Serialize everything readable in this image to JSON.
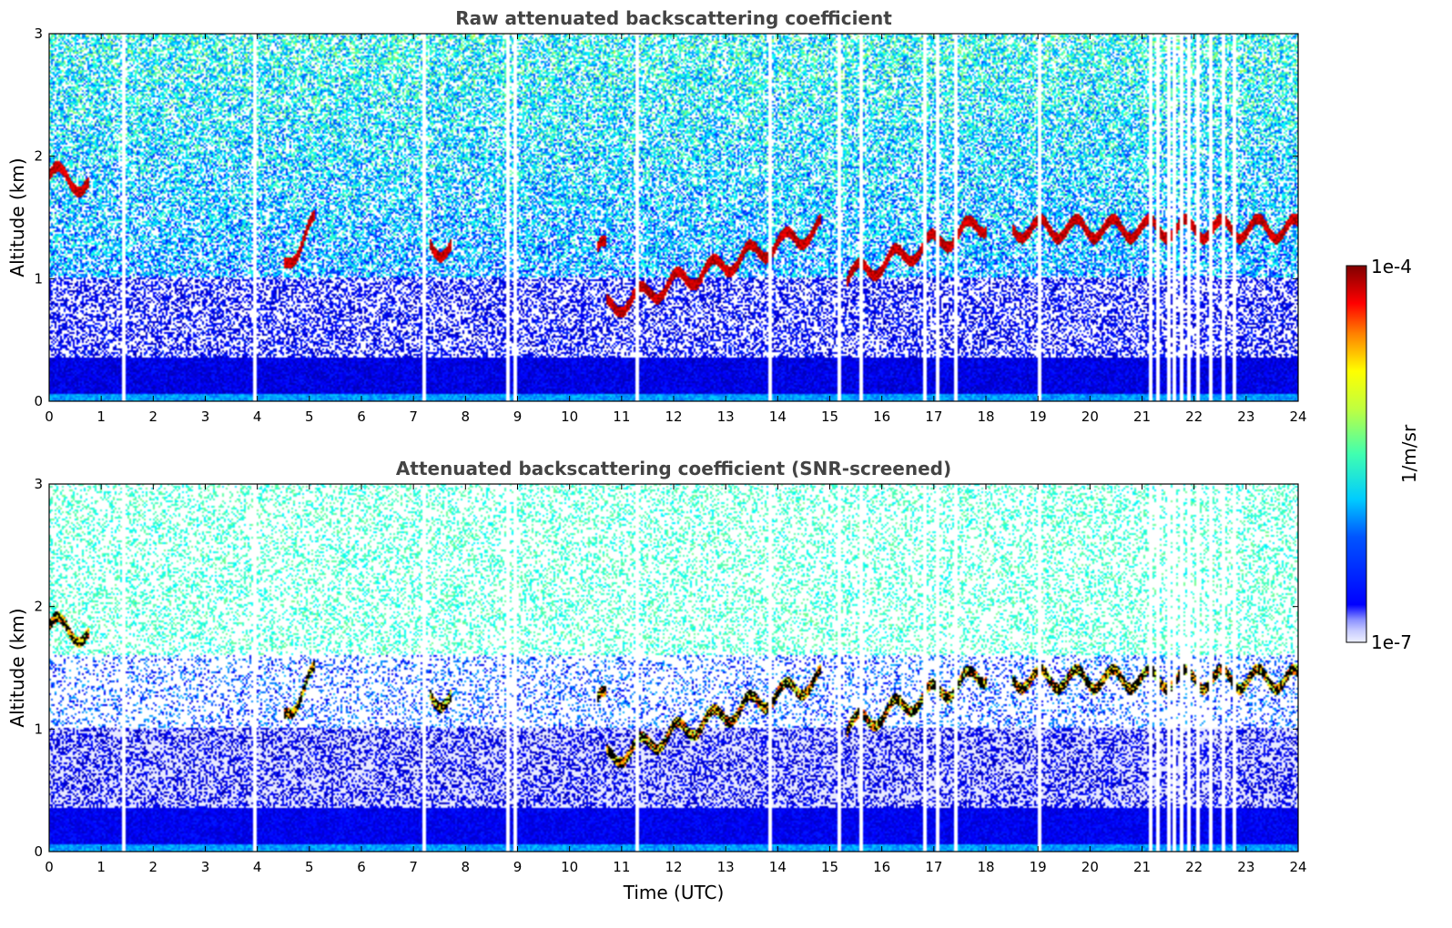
{
  "chart_data": [
    {
      "type": "heatmap",
      "title": "Raw attenuated backscattering coefficient",
      "xlabel": "",
      "ylabel": "Altitude (km)",
      "xlim": [
        0,
        24
      ],
      "ylim": [
        0,
        3
      ],
      "xticks": [
        "0",
        "1",
        "2",
        "3",
        "4",
        "5",
        "6",
        "7",
        "8",
        "9",
        "10",
        "11",
        "12",
        "13",
        "14",
        "15",
        "16",
        "17",
        "18",
        "19",
        "20",
        "21",
        "22",
        "23",
        "24"
      ],
      "yticks": [
        "0",
        "1",
        "2",
        "3"
      ],
      "cloud_layer": {
        "description": "high-backscatter aerosol/cloud layer",
        "segments": [
          {
            "t": [
              0.0,
              0.75
            ],
            "alt_km": [
              1.85,
              1.75
            ]
          },
          {
            "t": [
              4.5,
              5.1
            ],
            "alt_km": [
              1.1,
              1.45
            ]
          },
          {
            "t": [
              7.3,
              7.7
            ],
            "alt_km": [
              1.25,
              1.25
            ]
          },
          {
            "t": [
              10.5,
              10.7
            ],
            "alt_km": [
              1.22,
              1.22
            ]
          },
          {
            "t": [
              10.7,
              14.8
            ],
            "alt_km": [
              0.75,
              1.4
            ]
          },
          {
            "t": [
              15.3,
              18.0
            ],
            "alt_km": [
              1.0,
              1.45
            ]
          },
          {
            "t": [
              18.5,
              24.0
            ],
            "alt_km": [
              1.4,
              1.4
            ]
          }
        ]
      },
      "missing_times": [
        1.4,
        3.95,
        7.2,
        8.8,
        8.95,
        11.3,
        13.85,
        15.15,
        15.6,
        16.8,
        17.05,
        17.4,
        19.0,
        21.15,
        21.3,
        21.5,
        21.6,
        21.75,
        21.9,
        22.05,
        22.3,
        22.55,
        22.75
      ]
    },
    {
      "type": "heatmap",
      "title": "Attenuated backscattering coefficient (SNR-screened)",
      "xlabel": "Time (UTC)",
      "ylabel": "Altitude (km)",
      "xlim": [
        0,
        24
      ],
      "ylim": [
        0,
        3
      ],
      "xticks": [
        "0",
        "1",
        "2",
        "3",
        "4",
        "5",
        "6",
        "7",
        "8",
        "9",
        "10",
        "11",
        "12",
        "13",
        "14",
        "15",
        "16",
        "17",
        "18",
        "19",
        "20",
        "21",
        "22",
        "23",
        "24"
      ],
      "yticks": [
        "0",
        "1",
        "2",
        "3"
      ]
    }
  ],
  "colorbar": {
    "label": "1/m/sr",
    "min_label": "1e-7",
    "max_label": "1e-4",
    "scale": "log",
    "colormap": "jet"
  },
  "colors": {
    "title": "#444444",
    "low": "#0000ff",
    "high": "#8b0000"
  }
}
